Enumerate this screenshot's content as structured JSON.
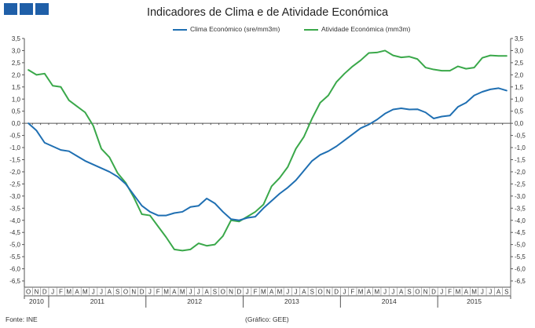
{
  "logo": {
    "squares": 3,
    "color": "#1f5fa8"
  },
  "chart_data": {
    "type": "line",
    "title": "Indicadores de Clima e de Atividade Económica",
    "xlabel": "",
    "ylabel": "",
    "ylim": [
      -6.5,
      3.5
    ],
    "ytick_step": 0.5,
    "grid": false,
    "legend_position": "top",
    "colors": {
      "clima": "#1f6fb2",
      "atividade": "#3aa84a",
      "axis": "#555555"
    },
    "months": [
      "O",
      "N",
      "D",
      "J",
      "F",
      "M",
      "A",
      "M",
      "J",
      "J",
      "A",
      "S",
      "O",
      "N",
      "D",
      "J",
      "F",
      "M",
      "A",
      "M",
      "J",
      "J",
      "A",
      "S",
      "O",
      "N",
      "D",
      "J",
      "F",
      "M",
      "A",
      "M",
      "J",
      "J",
      "A",
      "S",
      "O",
      "N",
      "D",
      "J",
      "F",
      "M",
      "A",
      "M",
      "J",
      "J",
      "A",
      "S",
      "O",
      "N",
      "D",
      "J",
      "F",
      "M",
      "A",
      "M",
      "J",
      "J",
      "A",
      "S"
    ],
    "years": [
      {
        "label": "2010",
        "start": 0,
        "end": 2
      },
      {
        "label": "2011",
        "start": 3,
        "end": 14
      },
      {
        "label": "2012",
        "start": 15,
        "end": 26
      },
      {
        "label": "2013",
        "start": 27,
        "end": 38
      },
      {
        "label": "2014",
        "start": 39,
        "end": 50
      },
      {
        "label": "2015",
        "start": 51,
        "end": 59
      }
    ],
    "series": [
      {
        "name": "Clima Económico (sre/mm3m)",
        "values": [
          0.0,
          -0.3,
          -0.8,
          -0.95,
          -1.1,
          -1.15,
          -1.35,
          -1.55,
          -1.7,
          -1.85,
          -2.0,
          -2.2,
          -2.5,
          -2.95,
          -3.4,
          -3.65,
          -3.8,
          -3.8,
          -3.7,
          -3.65,
          -3.45,
          -3.4,
          -3.1,
          -3.3,
          -3.65,
          -3.95,
          -4.0,
          -3.9,
          -3.85,
          -3.5,
          -3.2,
          -2.9,
          -2.65,
          -2.35,
          -1.95,
          -1.55,
          -1.3,
          -1.15,
          -0.95,
          -0.7,
          -0.45,
          -0.2,
          -0.05,
          0.15,
          0.4,
          0.57,
          0.62,
          0.57,
          0.58,
          0.45,
          0.2,
          0.28,
          0.32,
          0.68,
          0.85,
          1.15,
          1.3,
          1.4,
          1.45,
          1.35
        ]
      },
      {
        "name": "Atividade Económica (mm3m)",
        "values": [
          2.2,
          2.0,
          2.05,
          1.55,
          1.5,
          0.95,
          0.7,
          0.45,
          -0.1,
          -1.05,
          -1.4,
          -2.05,
          -2.45,
          -3.05,
          -3.75,
          -3.8,
          -4.25,
          -4.7,
          -5.2,
          -5.25,
          -5.2,
          -4.95,
          -5.05,
          -5.0,
          -4.65,
          -4.0,
          -4.05,
          -3.85,
          -3.65,
          -3.35,
          -2.6,
          -2.25,
          -1.8,
          -1.05,
          -0.55,
          0.2,
          0.85,
          1.15,
          1.7,
          2.05,
          2.35,
          2.6,
          2.9,
          2.92,
          3.0,
          2.8,
          2.72,
          2.75,
          2.65,
          2.3,
          2.22,
          2.17,
          2.17,
          2.35,
          2.25,
          2.3,
          2.7,
          2.8,
          2.78,
          2.78
        ]
      }
    ]
  },
  "footer": {
    "source": "Fonte: INE",
    "chart_credit": "(Gráfico: GEE)"
  }
}
